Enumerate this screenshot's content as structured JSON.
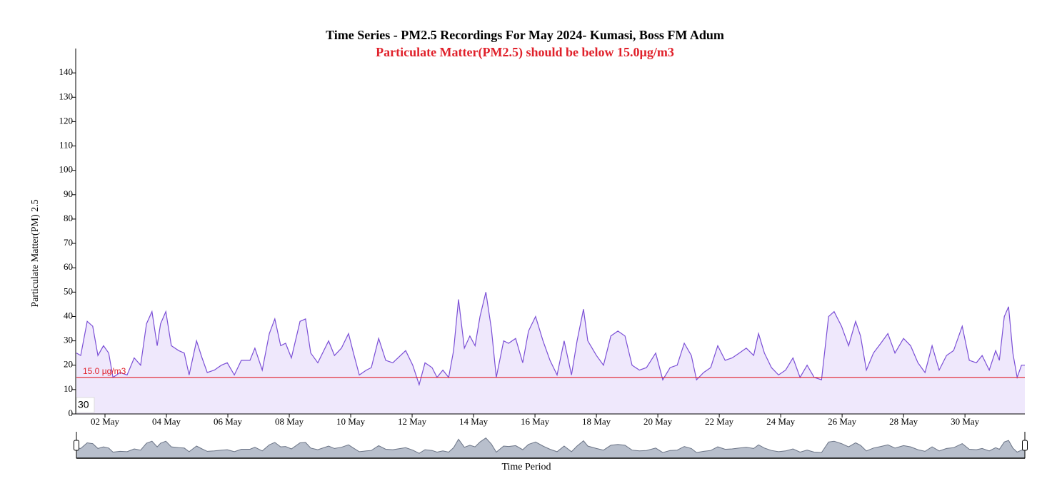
{
  "chart_data": {
    "type": "area",
    "title": "Time Series - PM2.5 Recordings For May 2024- Kumasi, Boss FM Adum",
    "subtitle": "Particulate Matter(PM2.5) should be below 15.0µg/m3",
    "y_label": "Particulate Matter(PM) 2.5",
    "x_label": "Time Period",
    "annotation": "30",
    "threshold": {
      "value": 15,
      "label": "15.0 µg/m3",
      "color": "#e0202a"
    },
    "color": "#7b4fd6",
    "fill": "#efe8fc",
    "x": [
      1.07,
      1.21,
      1.42,
      1.6,
      1.77,
      1.95,
      2.12,
      2.26,
      2.49,
      2.72,
      2.95,
      3.16,
      3.35,
      3.53,
      3.7,
      3.81,
      3.98,
      4.16,
      4.4,
      4.58,
      4.74,
      4.98,
      5.16,
      5.33,
      5.56,
      5.79,
      5.98,
      6.21,
      6.44,
      6.72,
      6.88,
      7.12,
      7.35,
      7.53,
      7.72,
      7.88,
      8.07,
      8.35,
      8.53,
      8.7,
      8.93,
      9.28,
      9.47,
      9.7,
      9.93,
      10.09,
      10.28,
      10.51,
      10.67,
      10.91,
      11.14,
      11.37,
      11.79,
      12.02,
      12.23,
      12.42,
      12.65,
      12.81,
      13.0,
      13.19,
      13.35,
      13.51,
      13.7,
      13.88,
      14.05,
      14.21,
      14.4,
      14.58,
      14.74,
      14.98,
      15.14,
      15.37,
      15.6,
      15.79,
      16.02,
      16.26,
      16.49,
      16.72,
      16.95,
      17.19,
      17.37,
      17.58,
      17.72,
      18.0,
      18.23,
      18.47,
      18.7,
      18.93,
      19.16,
      19.4,
      19.63,
      19.93,
      20.16,
      20.4,
      20.63,
      20.86,
      21.09,
      21.26,
      21.49,
      21.72,
      21.95,
      22.19,
      22.42,
      22.65,
      22.88,
      23.12,
      23.28,
      23.47,
      23.7,
      23.93,
      24.16,
      24.4,
      24.63,
      24.86,
      25.09,
      25.33,
      25.56,
      25.74,
      25.98,
      26.21,
      26.44,
      26.6,
      26.79,
      27.02,
      27.26,
      27.49,
      27.72,
      28.0,
      28.23,
      28.47,
      28.7,
      28.93,
      29.16,
      29.4,
      29.63,
      29.91,
      30.14,
      30.37,
      30.56,
      30.79,
      31.0,
      31.12,
      31.28,
      31.42,
      31.56,
      31.7,
      31.84,
      31.95
    ],
    "values": [
      25,
      24,
      38,
      36,
      24,
      28,
      25,
      15,
      17,
      16,
      23,
      20,
      37,
      42,
      28,
      37,
      42,
      28,
      26,
      25,
      16,
      30,
      23,
      17,
      18,
      20,
      21,
      16,
      22,
      22,
      27,
      18,
      33,
      39,
      28,
      29,
      23,
      38,
      39,
      25,
      21,
      30,
      24,
      27,
      33,
      25,
      16,
      18,
      19,
      31,
      22,
      21,
      26,
      20,
      12,
      21,
      19,
      15,
      18,
      15,
      26,
      47,
      27,
      32,
      28,
      40,
      50,
      35,
      15,
      30,
      29,
      31,
      21,
      34,
      40,
      30,
      22,
      16,
      30,
      16,
      30,
      43,
      30,
      24,
      20,
      32,
      34,
      32,
      20,
      18,
      19,
      25,
      14,
      19,
      20,
      29,
      24,
      14,
      17,
      19,
      28,
      22,
      23,
      25,
      27,
      24,
      33,
      25,
      19,
      16,
      18,
      23,
      15,
      20,
      15,
      14,
      40,
      42,
      36,
      28,
      38,
      32,
      18,
      25,
      29,
      33,
      25,
      31,
      28,
      21,
      17,
      28,
      18,
      24,
      26,
      36,
      22,
      21,
      24,
      18,
      26,
      22,
      40,
      44,
      25,
      15,
      20,
      20
    ],
    "xlim": [
      1,
      31.95
    ],
    "xticks": [
      {
        "value": 2,
        "label": "02 May"
      },
      {
        "value": 4,
        "label": "04 May"
      },
      {
        "value": 6,
        "label": "06 May"
      },
      {
        "value": 8,
        "label": "08 May"
      },
      {
        "value": 10,
        "label": "10 May"
      },
      {
        "value": 12,
        "label": "12 May"
      },
      {
        "value": 14,
        "label": "14 May"
      },
      {
        "value": 16,
        "label": "16 May"
      },
      {
        "value": 18,
        "label": "18 May"
      },
      {
        "value": 20,
        "label": "20 May"
      },
      {
        "value": 22,
        "label": "22 May"
      },
      {
        "value": 24,
        "label": "24 May"
      },
      {
        "value": 26,
        "label": "26 May"
      },
      {
        "value": 28,
        "label": "28 May"
      },
      {
        "value": 30,
        "label": "30 May"
      }
    ],
    "ylim": [
      0,
      150
    ],
    "yticks": [
      0,
      10,
      20,
      30,
      40,
      50,
      60,
      70,
      80,
      90,
      100,
      110,
      120,
      130,
      140
    ]
  }
}
